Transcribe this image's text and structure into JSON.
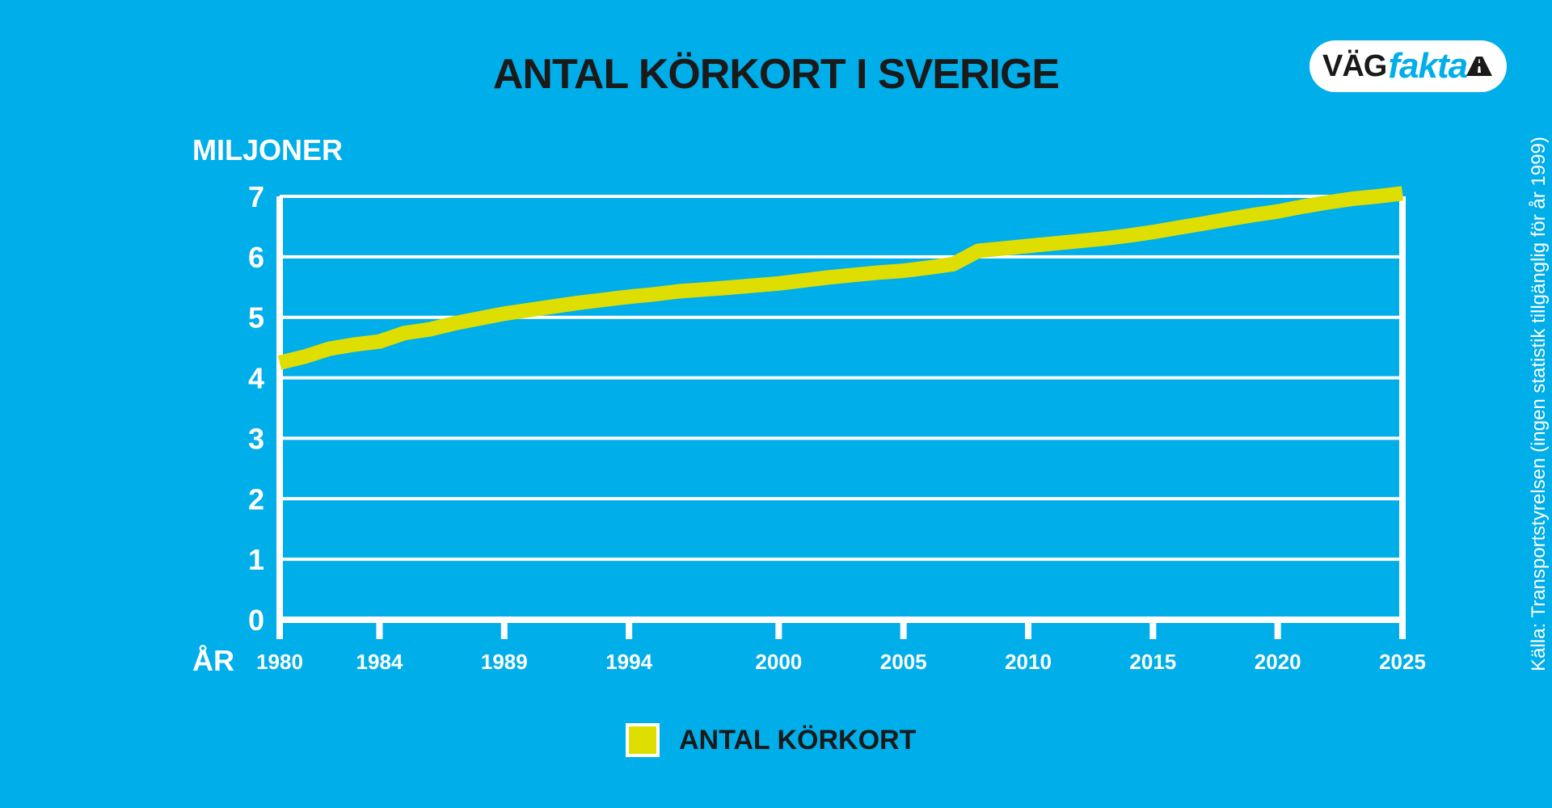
{
  "logo": {
    "part1": "VÄG",
    "part2": "fakta"
  },
  "source": "Källa: Transportstyrelsen (ingen statistik tillgänglig för år 1999)",
  "chart_data": {
    "type": "line",
    "title": "ANTAL KÖRKORT I SVERIGE",
    "ylabel": "MILJONER",
    "xlabel": "ÅR",
    "ylim": [
      0,
      7
    ],
    "xlim": [
      1980,
      2025
    ],
    "y_ticks": [
      "0",
      "1",
      "2",
      "3",
      "4",
      "5",
      "6",
      "7"
    ],
    "x_tick_labels": [
      "1980",
      "1984",
      "1989",
      "1994",
      "2000",
      "2005",
      "2010",
      "2015",
      "2020",
      "2025"
    ],
    "grid": true,
    "legend_position": "bottom-center",
    "series": [
      {
        "name": "ANTAL KÖRKORT",
        "color": "#dedf00",
        "points": [
          [
            1980,
            4.25
          ],
          [
            1981,
            4.35
          ],
          [
            1982,
            4.48
          ],
          [
            1983,
            4.55
          ],
          [
            1984,
            4.6
          ],
          [
            1985,
            4.74
          ],
          [
            1986,
            4.8
          ],
          [
            1987,
            4.9
          ],
          [
            1988,
            4.98
          ],
          [
            1989,
            5.06
          ],
          [
            1990,
            5.12
          ],
          [
            1991,
            5.18
          ],
          [
            1992,
            5.24
          ],
          [
            1993,
            5.29
          ],
          [
            1994,
            5.34
          ],
          [
            1995,
            5.38
          ],
          [
            1996,
            5.43
          ],
          [
            1997,
            5.46
          ],
          [
            1998,
            5.49
          ],
          [
            2000,
            5.56
          ],
          [
            2001,
            5.61
          ],
          [
            2002,
            5.66
          ],
          [
            2003,
            5.7
          ],
          [
            2004,
            5.74
          ],
          [
            2005,
            5.77
          ],
          [
            2006,
            5.82
          ],
          [
            2007,
            5.88
          ],
          [
            2008,
            6.1
          ],
          [
            2009,
            6.14
          ],
          [
            2010,
            6.18
          ],
          [
            2011,
            6.22
          ],
          [
            2012,
            6.26
          ],
          [
            2013,
            6.3
          ],
          [
            2014,
            6.35
          ],
          [
            2015,
            6.41
          ],
          [
            2016,
            6.48
          ],
          [
            2017,
            6.55
          ],
          [
            2018,
            6.62
          ],
          [
            2019,
            6.69
          ],
          [
            2020,
            6.75
          ],
          [
            2021,
            6.83
          ],
          [
            2022,
            6.9
          ],
          [
            2023,
            6.96
          ],
          [
            2024,
            7.0
          ],
          [
            2025,
            7.05
          ]
        ]
      }
    ]
  }
}
